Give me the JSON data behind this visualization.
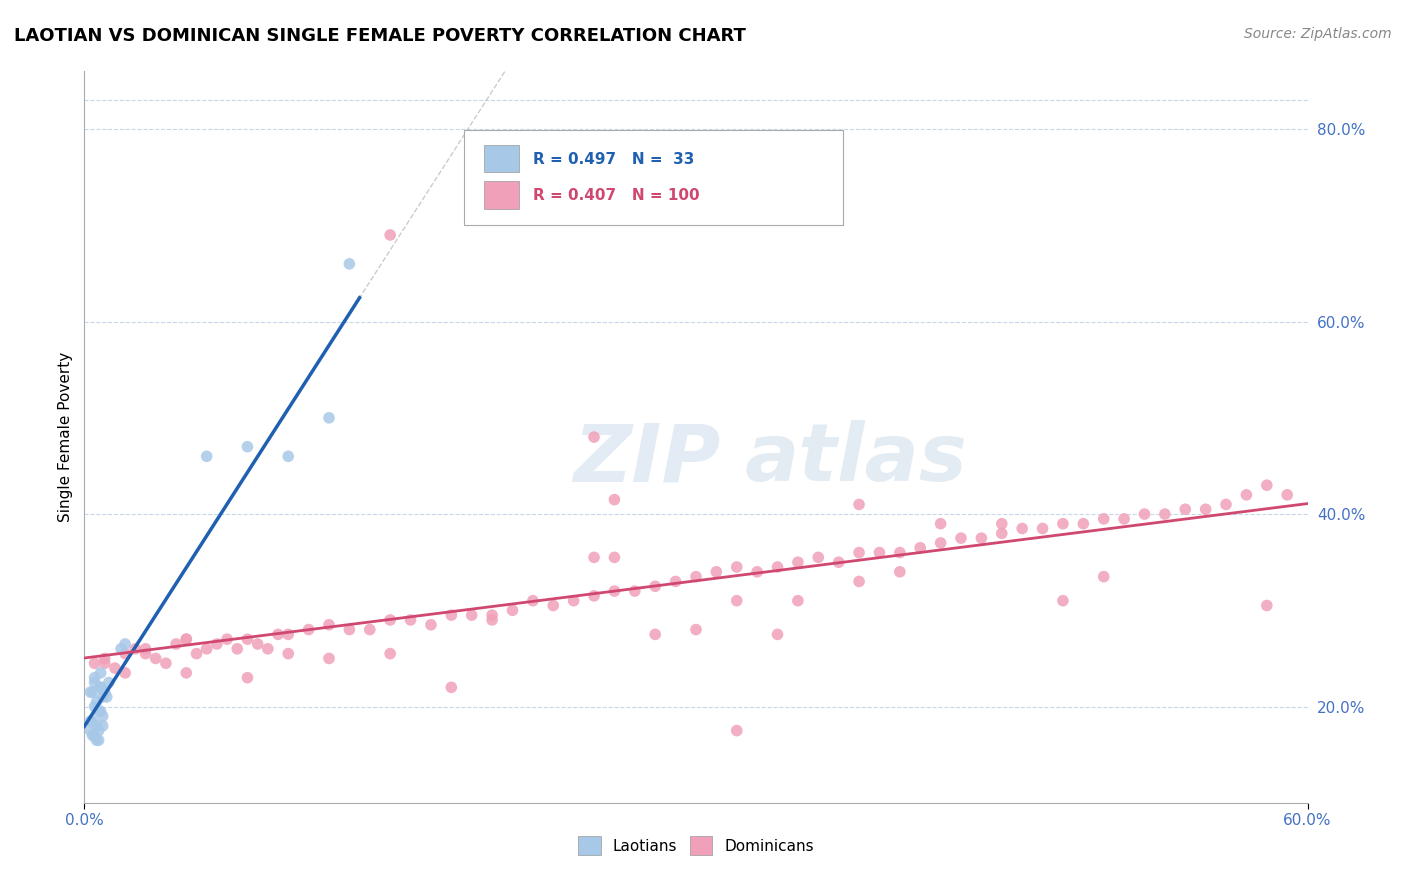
{
  "title": "LAOTIAN VS DOMINICAN SINGLE FEMALE POVERTY CORRELATION CHART",
  "source_text": "Source: ZipAtlas.com",
  "ylabel": "Single Female Poverty",
  "xmin": 0.0,
  "xmax": 0.6,
  "ymin": 0.1,
  "ymax": 0.86,
  "right_yticks": [
    0.2,
    0.4,
    0.6,
    0.8
  ],
  "right_yticklabels": [
    "20.0%",
    "40.0%",
    "60.0%",
    "80.0%"
  ],
  "xticks": [
    0.0,
    0.6
  ],
  "xticklabels": [
    "0.0%",
    "60.0%"
  ],
  "laotian_R": 0.497,
  "laotian_N": 33,
  "dominican_R": 0.407,
  "dominican_N": 100,
  "laotian_color": "#a8c8e8",
  "laotian_line_color": "#2060b0",
  "dominican_color": "#f0a0b8",
  "dominican_line_color": "#d04870",
  "bg_color": "#ffffff",
  "plot_bg_color": "#ffffff",
  "grid_color": "#c8d8ea",
  "laotian_scatter_x": [
    0.005,
    0.008,
    0.01,
    0.012,
    0.005,
    0.007,
    0.009,
    0.011,
    0.004,
    0.006,
    0.008,
    0.003,
    0.005,
    0.007,
    0.009,
    0.004,
    0.006,
    0.008,
    0.003,
    0.005,
    0.007,
    0.009,
    0.004,
    0.006,
    0.008,
    0.003,
    0.06,
    0.08,
    0.1,
    0.12,
    0.018,
    0.02,
    0.13
  ],
  "laotian_scatter_y": [
    0.23,
    0.235,
    0.215,
    0.225,
    0.2,
    0.195,
    0.19,
    0.21,
    0.185,
    0.18,
    0.22,
    0.175,
    0.17,
    0.165,
    0.21,
    0.215,
    0.205,
    0.195,
    0.185,
    0.225,
    0.175,
    0.18,
    0.17,
    0.165,
    0.22,
    0.215,
    0.46,
    0.47,
    0.46,
    0.5,
    0.26,
    0.265,
    0.66
  ],
  "dominican_scatter_x": [
    0.005,
    0.01,
    0.015,
    0.02,
    0.025,
    0.03,
    0.035,
    0.04,
    0.045,
    0.05,
    0.055,
    0.06,
    0.065,
    0.07,
    0.075,
    0.08,
    0.085,
    0.09,
    0.095,
    0.1,
    0.11,
    0.12,
    0.13,
    0.14,
    0.15,
    0.16,
    0.17,
    0.18,
    0.19,
    0.2,
    0.21,
    0.22,
    0.23,
    0.24,
    0.25,
    0.26,
    0.27,
    0.28,
    0.29,
    0.3,
    0.31,
    0.32,
    0.33,
    0.34,
    0.35,
    0.36,
    0.37,
    0.38,
    0.39,
    0.4,
    0.41,
    0.42,
    0.43,
    0.44,
    0.45,
    0.46,
    0.47,
    0.48,
    0.49,
    0.5,
    0.51,
    0.52,
    0.53,
    0.54,
    0.55,
    0.56,
    0.57,
    0.58,
    0.59,
    0.01,
    0.02,
    0.03,
    0.05,
    0.1,
    0.2,
    0.3,
    0.4,
    0.5,
    0.25,
    0.35,
    0.45,
    0.15,
    0.05,
    0.08,
    0.12,
    0.18,
    0.28,
    0.38,
    0.48,
    0.38,
    0.42,
    0.32,
    0.15,
    0.25,
    0.26,
    0.34,
    0.26,
    0.58,
    0.32
  ],
  "dominican_scatter_y": [
    0.245,
    0.25,
    0.24,
    0.235,
    0.26,
    0.255,
    0.25,
    0.245,
    0.265,
    0.27,
    0.255,
    0.26,
    0.265,
    0.27,
    0.26,
    0.27,
    0.265,
    0.26,
    0.275,
    0.275,
    0.28,
    0.285,
    0.28,
    0.28,
    0.29,
    0.29,
    0.285,
    0.295,
    0.295,
    0.295,
    0.3,
    0.31,
    0.305,
    0.31,
    0.315,
    0.32,
    0.32,
    0.325,
    0.33,
    0.335,
    0.34,
    0.345,
    0.34,
    0.345,
    0.35,
    0.355,
    0.35,
    0.36,
    0.36,
    0.36,
    0.365,
    0.37,
    0.375,
    0.375,
    0.38,
    0.385,
    0.385,
    0.39,
    0.39,
    0.395,
    0.395,
    0.4,
    0.4,
    0.405,
    0.405,
    0.41,
    0.42,
    0.43,
    0.42,
    0.245,
    0.255,
    0.26,
    0.27,
    0.255,
    0.29,
    0.28,
    0.34,
    0.335,
    0.355,
    0.31,
    0.39,
    0.255,
    0.235,
    0.23,
    0.25,
    0.22,
    0.275,
    0.33,
    0.31,
    0.41,
    0.39,
    0.31,
    0.69,
    0.48,
    0.415,
    0.275,
    0.355,
    0.305,
    0.175
  ]
}
